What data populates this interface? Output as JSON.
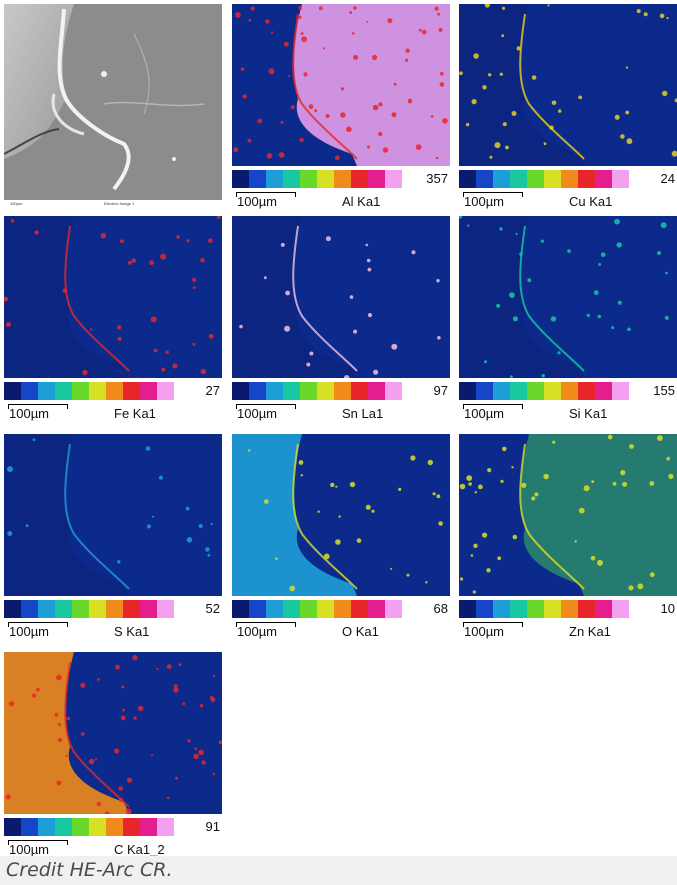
{
  "sem_image": {
    "scale_text": "100µm",
    "label_text": "Electron Image 1"
  },
  "maps": [
    {
      "element": "Al Ka1",
      "max": "357",
      "scale": "100µm"
    },
    {
      "element": "Cu Ka1",
      "max": "24",
      "scale": "100µm"
    },
    {
      "element": "Fe Ka1",
      "max": "27",
      "scale": "100µm"
    },
    {
      "element": "Sn La1",
      "max": "97",
      "scale": "100µm"
    },
    {
      "element": "Si Ka1",
      "max": "155",
      "scale": "100µm"
    },
    {
      "element": "S Ka1",
      "max": "52",
      "scale": "100µm"
    },
    {
      "element": "O Ka1",
      "max": "68",
      "scale": "100µm"
    },
    {
      "element": "Zn Ka1",
      "max": "10",
      "scale": "100µm"
    },
    {
      "element": "C Ka1_2",
      "max": "91",
      "scale": "100µm"
    }
  ],
  "colors": {
    "colorbar": [
      "#0a1a6e",
      "#1546c8",
      "#1e9ed6",
      "#18c8a0",
      "#6ad82a",
      "#d8e024",
      "#f08a1a",
      "#e8262a",
      "#e41e8c",
      "#f4a0f0"
    ],
    "map_background": "#0b2a8c"
  },
  "caption": "Credit HE-Arc CR."
}
